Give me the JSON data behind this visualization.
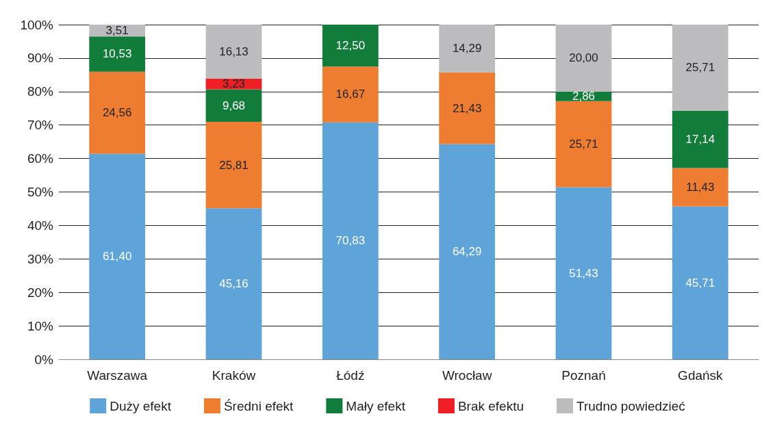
{
  "chart_data": {
    "type": "bar",
    "stacked": true,
    "categories": [
      "Warszawa",
      "Kraków",
      "Łódź",
      "Wrocław",
      "Poznań",
      "Gdańsk"
    ],
    "series": [
      {
        "name": "Duży efekt",
        "color": "#5ea4d9",
        "values": [
          61.4,
          45.16,
          70.83,
          64.29,
          51.43,
          45.71
        ],
        "value_labels": [
          "61,40",
          "45,16",
          "70,83",
          "64,29",
          "51,43",
          "45,71"
        ]
      },
      {
        "name": "Średni efekt",
        "color": "#ee7d31",
        "values": [
          24.56,
          25.81,
          16.67,
          21.43,
          25.71,
          11.43
        ],
        "value_labels": [
          "24,56",
          "25,81",
          "16,67",
          "21,43",
          "25,71",
          "11,43"
        ]
      },
      {
        "name": "Mały efekt",
        "color": "#127c3b",
        "values": [
          10.53,
          9.68,
          12.5,
          null,
          2.86,
          17.14
        ],
        "value_labels": [
          "10,53",
          "9,68",
          "12,50",
          null,
          "2,86",
          "17,14"
        ]
      },
      {
        "name": "Brak efektu",
        "color": "#ee2026",
        "values": [
          null,
          3.23,
          null,
          null,
          null,
          null
        ],
        "value_labels": [
          null,
          "3,23",
          null,
          null,
          null,
          null
        ]
      },
      {
        "name": "Trudno powiedzieć",
        "color": "#bcbcbf",
        "values": [
          3.51,
          16.13,
          null,
          14.29,
          20.0,
          25.71
        ],
        "value_labels": [
          "3,51",
          "16,13",
          null,
          "14,29",
          "20,00",
          "25,71"
        ]
      }
    ],
    "ylim": [
      0,
      100
    ],
    "yticks": [
      {
        "value": 0,
        "label": "0%"
      },
      {
        "value": 10,
        "label": "10%"
      },
      {
        "value": 20,
        "label": "20%"
      },
      {
        "value": 30,
        "label": "30%"
      },
      {
        "value": 40,
        "label": "40%"
      },
      {
        "value": 50,
        "label": "50%"
      },
      {
        "value": 60,
        "label": "60%"
      },
      {
        "value": 70,
        "label": "70%"
      },
      {
        "value": 80,
        "label": "80%"
      },
      {
        "value": 90,
        "label": "90%"
      },
      {
        "value": 100,
        "label": "100%"
      }
    ],
    "grid": "y",
    "legend": "bottom"
  }
}
